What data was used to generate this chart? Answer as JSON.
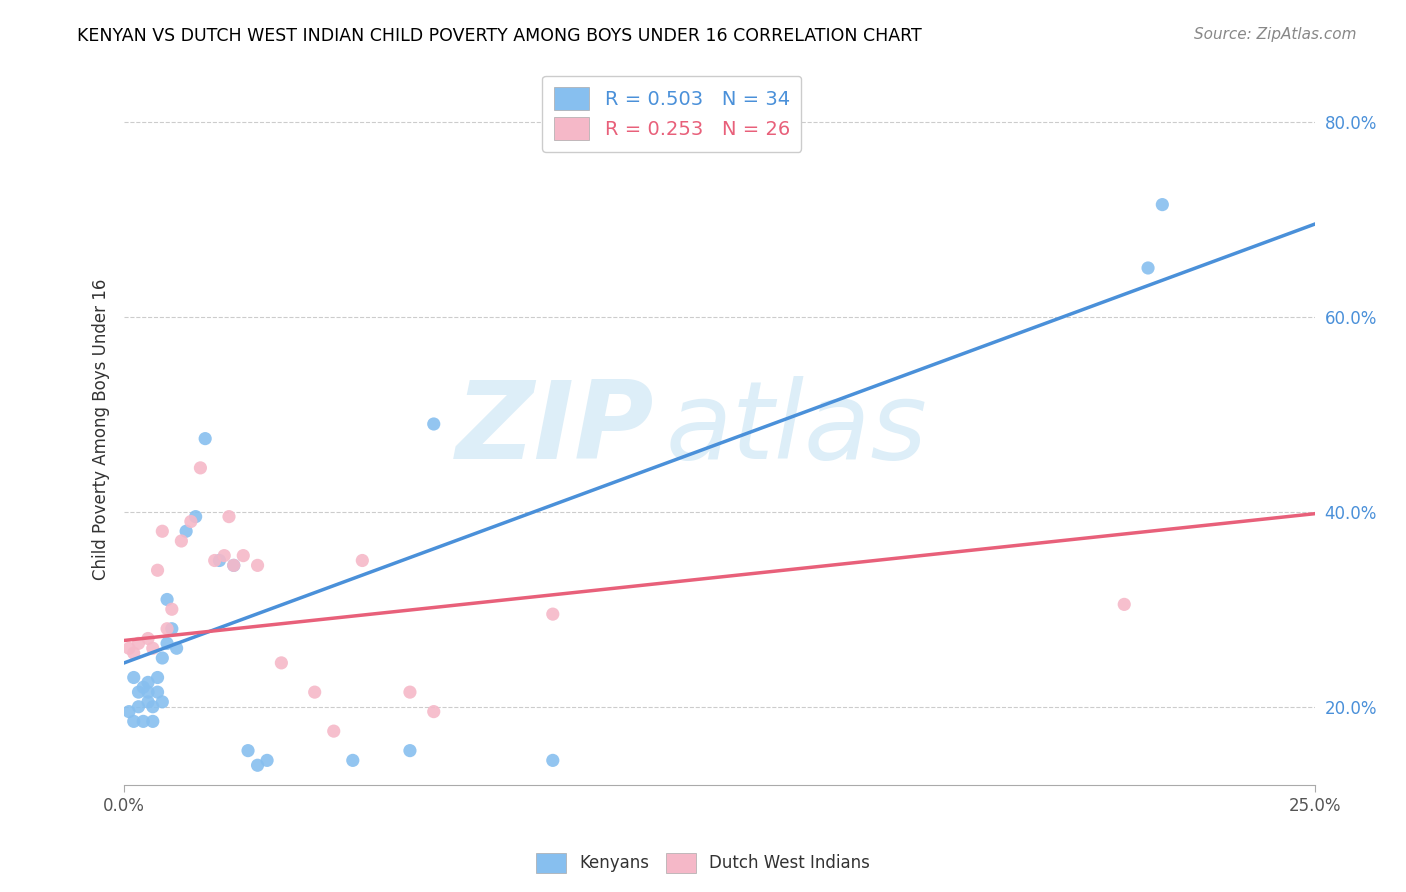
{
  "title": "KENYAN VS DUTCH WEST INDIAN CHILD POVERTY AMONG BOYS UNDER 16 CORRELATION CHART",
  "source": "Source: ZipAtlas.com",
  "ylabel": "Child Poverty Among Boys Under 16",
  "xlim": [
    0.0,
    0.25
  ],
  "ylim": [
    0.12,
    0.85
  ],
  "yticks": [
    0.2,
    0.4,
    0.6,
    0.8
  ],
  "ytick_labels": [
    "20.0%",
    "40.0%",
    "60.0%",
    "80.0%"
  ],
  "kenyan_color": "#87bfef",
  "kenyan_line_color": "#4a90d9",
  "dutch_color": "#f5b8c8",
  "dutch_line_color": "#e8607a",
  "watermark_text": "ZIPatlas",
  "watermark_color": "#ddeef8",
  "background_color": "#ffffff",
  "grid_color": "#cccccc",
  "kenyan_x": [
    0.001,
    0.002,
    0.002,
    0.003,
    0.003,
    0.004,
    0.004,
    0.005,
    0.005,
    0.005,
    0.006,
    0.006,
    0.007,
    0.007,
    0.008,
    0.008,
    0.009,
    0.009,
    0.01,
    0.011,
    0.013,
    0.015,
    0.017,
    0.02,
    0.023,
    0.026,
    0.028,
    0.03,
    0.048,
    0.06,
    0.065,
    0.09,
    0.215,
    0.218
  ],
  "kenyan_y": [
    0.195,
    0.185,
    0.23,
    0.2,
    0.215,
    0.185,
    0.22,
    0.205,
    0.215,
    0.225,
    0.2,
    0.185,
    0.215,
    0.23,
    0.205,
    0.25,
    0.31,
    0.265,
    0.28,
    0.26,
    0.38,
    0.395,
    0.475,
    0.35,
    0.345,
    0.155,
    0.14,
    0.145,
    0.145,
    0.155,
    0.49,
    0.145,
    0.65,
    0.715
  ],
  "dutch_x": [
    0.001,
    0.002,
    0.003,
    0.005,
    0.006,
    0.007,
    0.008,
    0.009,
    0.01,
    0.012,
    0.014,
    0.016,
    0.019,
    0.021,
    0.022,
    0.023,
    0.025,
    0.028,
    0.033,
    0.04,
    0.044,
    0.05,
    0.06,
    0.065,
    0.09,
    0.21
  ],
  "dutch_y": [
    0.26,
    0.255,
    0.265,
    0.27,
    0.26,
    0.34,
    0.38,
    0.28,
    0.3,
    0.37,
    0.39,
    0.445,
    0.35,
    0.355,
    0.395,
    0.345,
    0.355,
    0.345,
    0.245,
    0.215,
    0.175,
    0.35,
    0.215,
    0.195,
    0.295,
    0.305
  ]
}
